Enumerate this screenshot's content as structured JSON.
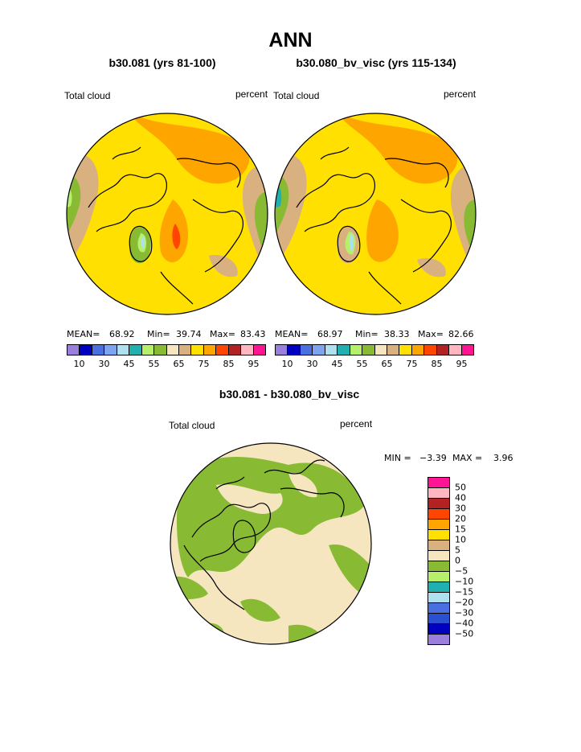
{
  "title": "ANN",
  "panels": [
    {
      "subtitle": "b30.081 (yrs 81-100)",
      "left_label": "Total cloud",
      "right_label": "percent",
      "stats": {
        "mean_label": "MEAN=",
        "mean": "68.92",
        "min_label": "Min=",
        "min": "39.74",
        "max_label": "Max=",
        "max": "83.43"
      }
    },
    {
      "subtitle": "b30.080_bv_visc (yrs 115-134)",
      "left_label": "Total cloud",
      "right_label": "percent",
      "stats": {
        "mean_label": "MEAN=",
        "mean": "68.97",
        "min_label": "Min=",
        "min": "38.33",
        "max_label": "Max=",
        "max": "82.66"
      }
    }
  ],
  "abs_colorbar": {
    "colors": [
      "#9a7fdd",
      "#0000c0",
      "#4a6fe0",
      "#7ea4f0",
      "#aee0f0",
      "#20b0b0",
      "#b6f06a",
      "#88bb33",
      "#f5e6c0",
      "#d9b080",
      "#ffe000",
      "#ffa500",
      "#ff4500",
      "#b22222",
      "#ffb6c1",
      "#ff1493"
    ],
    "labels": [
      "10",
      "30",
      "45",
      "55",
      "65",
      "75",
      "85",
      "95"
    ]
  },
  "diff_panel": {
    "subtitle": "b30.081 - b30.080_bv_visc",
    "left_label": "Total cloud",
    "right_label": "percent",
    "min_label": "MIN =",
    "min": "−3.39",
    "max_label": "MAX =",
    "max": "3.96"
  },
  "diff_colorbar": {
    "colors_top_to_bottom": [
      "#ff1493",
      "#ffb6c1",
      "#b22222",
      "#ff4500",
      "#ffa500",
      "#ffe000",
      "#d9b080",
      "#f5e6c0",
      "#88bb33",
      "#b6f06a",
      "#20b0b0",
      "#aee0f0",
      "#4a6fe0",
      "#2a4fd0",
      "#0000c0",
      "#9a7fdd"
    ],
    "labels": [
      "50",
      "40",
      "30",
      "20",
      "15",
      "10",
      "5",
      "0",
      "−5",
      "−10",
      "−15",
      "−20",
      "−30",
      "−40",
      "−50"
    ]
  },
  "map_colors": {
    "yellow": "#ffe000",
    "orange": "#ffa500",
    "red": "#ff4500",
    "tan": "#d9b080",
    "cream": "#f5e6c0",
    "green": "#88bb33",
    "lightgreen": "#b6f06a",
    "teal": "#20b0b0",
    "lightblue": "#aee0f0"
  }
}
